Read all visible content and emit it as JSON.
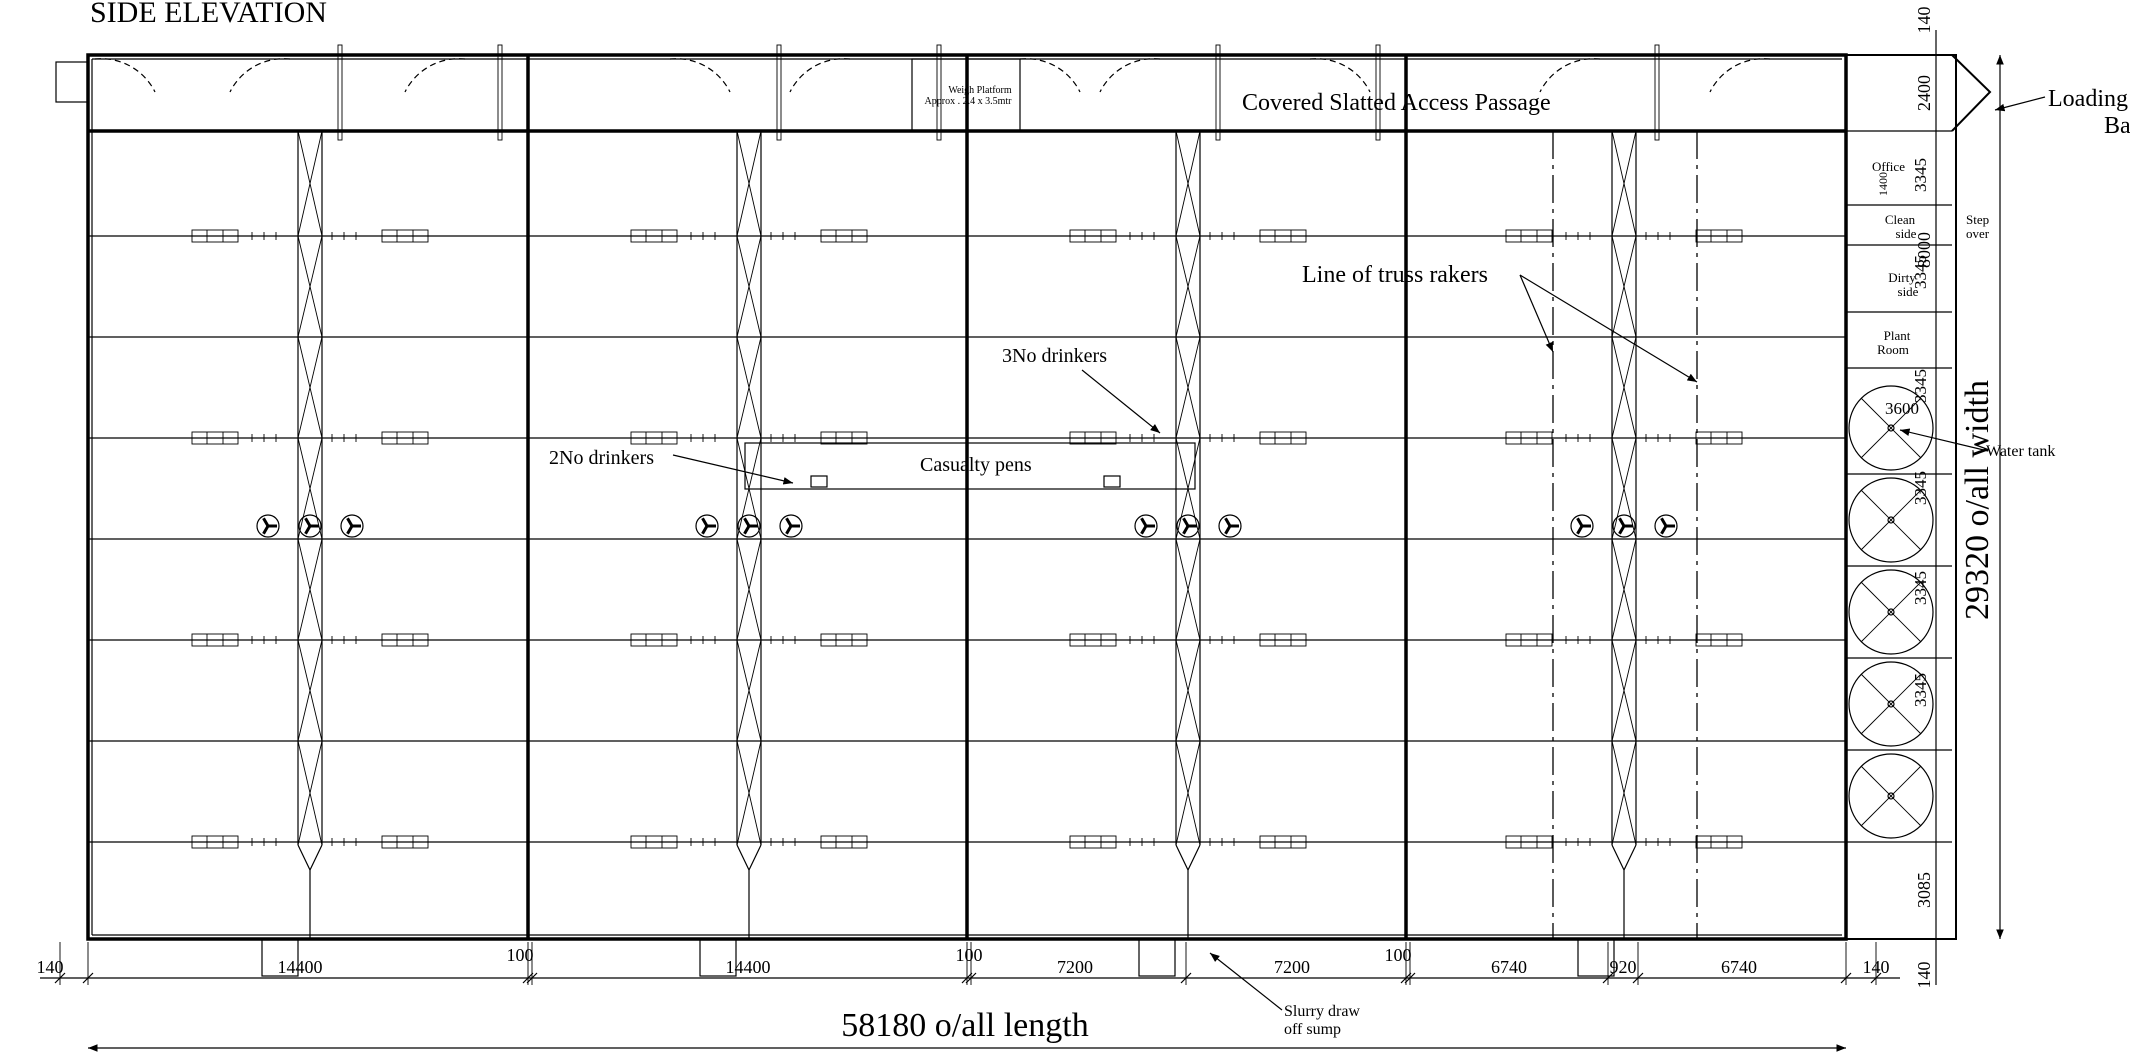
{
  "drawing": {
    "heading": "SIDE ELEVATION",
    "labels": {
      "weigh_platform_line1": "Weigh Platform",
      "weigh_platform_line2": "Approx . 2.4 x 3.5mtr",
      "access_passage": "Covered Slatted Access Passage",
      "loading_line1": "Loading",
      "loading_line2": "Bay",
      "office": "Office",
      "clean_line1": "Clean",
      "clean_line2": "side",
      "dirty_line1": "Dirty",
      "dirty_line2": "side",
      "plant_line1": "Plant",
      "plant_line2": "Room",
      "step_line1": "Step",
      "step_line2": "over",
      "truss_rakers": "Line of truss rakers",
      "three_drinkers": "3No drinkers",
      "two_drinkers": "2No drinkers",
      "casualty_pens": "Casualty pens",
      "water_tank": "Water tank",
      "slurry_line1": "Slurry draw",
      "slurry_line2": "off sump"
    },
    "dimensions": {
      "overall_length": "58180 o/all length",
      "overall_width": "29320 o/all width",
      "bottom": [
        "140",
        "14400",
        "100",
        "14400",
        "100",
        "7200",
        "7200",
        "100",
        "6740",
        "920",
        "6740",
        "140"
      ],
      "right_vertical": [
        "140",
        "2400",
        "8000",
        "3085",
        "140"
      ],
      "room_heights": [
        "3345",
        "3345",
        "3345",
        "3345",
        "3345",
        "3345"
      ],
      "tank_diameter": "3600",
      "office_small": "1400"
    }
  }
}
